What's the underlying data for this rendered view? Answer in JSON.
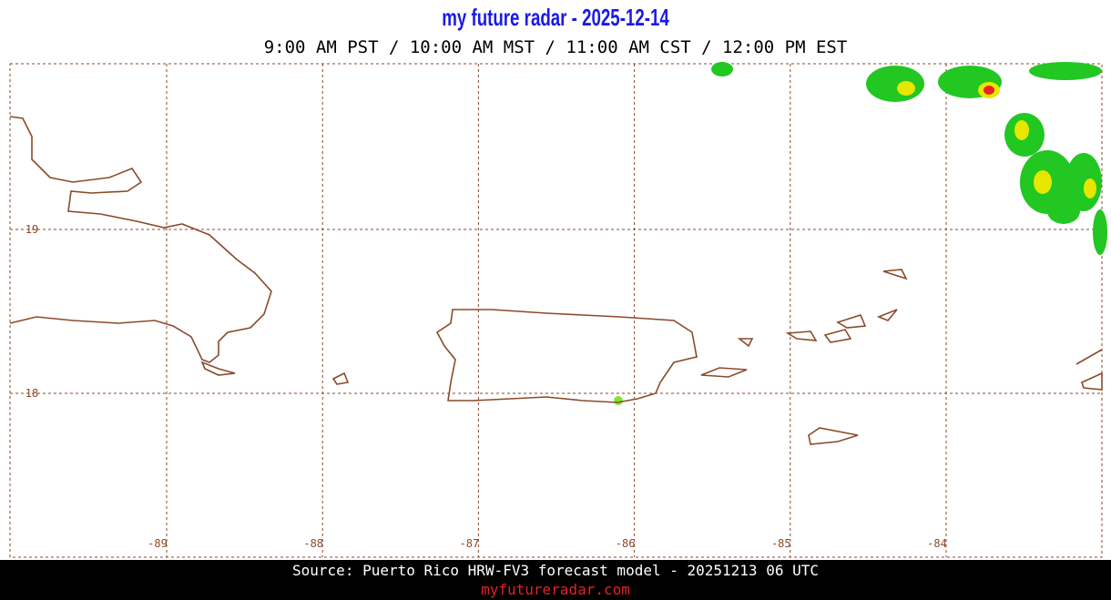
{
  "header": {
    "title": "my future radar - 2025-12-14",
    "time": "9:00 AM PST / 10:00 AM MST / 11:00 AM CST / 12:00 PM EST"
  },
  "map": {
    "lon_labels": [
      -89,
      -88,
      -87,
      -86,
      -85,
      -84
    ],
    "lat_labels": [
      19,
      18
    ]
  },
  "footer": {
    "source": "Source: Puerto Rico HRW-FV3 forecast model - 20251213 06 UTC",
    "site": "myfutureradar.com"
  }
}
